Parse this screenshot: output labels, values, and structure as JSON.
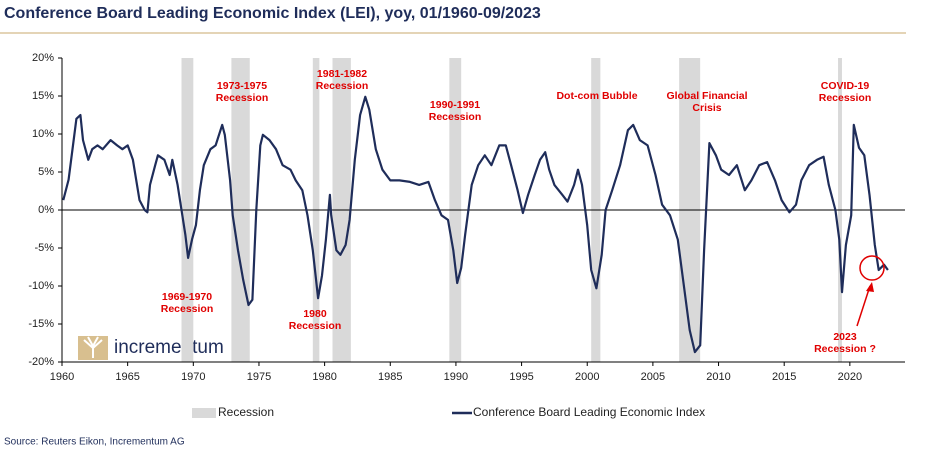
{
  "chart_data": {
    "type": "line",
    "title": "Conference Board Leading Economic Index (LEI), yoy, 01/1960-09/2023",
    "source": "Source: Reuters Eikon, Incrementum AG",
    "logo": "incrementum",
    "xlim": [
      1960,
      2024.2
    ],
    "xticks": [
      1960,
      1965,
      1970,
      1975,
      1980,
      1985,
      1990,
      1995,
      2000,
      2005,
      2010,
      2015,
      2020
    ],
    "ylim": [
      -20,
      20
    ],
    "yticks": [
      {
        "value": -20,
        "label": "-20%"
      },
      {
        "value": -15,
        "label": "-15%"
      },
      {
        "value": -10,
        "label": "-10%"
      },
      {
        "value": -5,
        "label": "-5%"
      },
      {
        "value": 0,
        "label": "0%"
      },
      {
        "value": 5,
        "label": "5%"
      },
      {
        "value": 10,
        "label": "10%"
      },
      {
        "value": 15,
        "label": "15%"
      },
      {
        "value": 20,
        "label": "20%"
      }
    ],
    "recession_label": "Recession",
    "recession_color": "#d9d9d9",
    "recessions": [
      [
        1969.1,
        1970.0
      ],
      [
        1972.9,
        1974.3
      ],
      [
        1979.1,
        1979.6
      ],
      [
        1980.6,
        1982.0
      ],
      [
        1989.5,
        1990.4
      ],
      [
        2000.3,
        2001.0
      ],
      [
        2007.0,
        2008.6
      ],
      [
        2019.1,
        2019.4
      ]
    ],
    "x": [
      1960.1,
      1960.5,
      1960.8,
      1961.1,
      1961.4,
      1961.6,
      1962.0,
      1962.3,
      1962.7,
      1963.1,
      1963.7,
      1964.2,
      1964.6,
      1965.0,
      1965.4,
      1965.9,
      1966.3,
      1966.5,
      1966.7,
      1967.1,
      1967.3,
      1967.8,
      1968.2,
      1968.4,
      1968.8,
      1969.1,
      1969.4,
      1969.6,
      1969.9,
      1970.2,
      1970.5,
      1970.8,
      1971.3,
      1971.7,
      1972.2,
      1972.4,
      1972.8,
      1973.0,
      1973.4,
      1973.8,
      1974.2,
      1974.5,
      1974.8,
      1975.1,
      1975.3,
      1975.8,
      1976.3,
      1976.8,
      1977.4,
      1977.8,
      1978.3,
      1978.7,
      1979.1,
      1979.5,
      1979.8,
      1980.1,
      1980.4,
      1980.5,
      1980.9,
      1981.2,
      1981.6,
      1981.9,
      1982.3,
      1982.7,
      1983.1,
      1983.4,
      1983.9,
      1984.4,
      1985.0,
      1985.7,
      1986.5,
      1987.2,
      1987.9,
      1988.4,
      1988.9,
      1989.4,
      1989.8,
      1990.1,
      1990.4,
      1990.7,
      1991.2,
      1991.7,
      1992.2,
      1992.7,
      1993.3,
      1993.8,
      1994.2,
      1994.7,
      1995.1,
      1995.5,
      1996.0,
      1996.4,
      1996.8,
      1997.1,
      1997.5,
      1998.1,
      1998.5,
      1999.0,
      1999.3,
      1999.6,
      2000.0,
      2000.3,
      2000.7,
      2001.1,
      2001.4,
      2001.9,
      2002.5,
      2003.1,
      2003.5,
      2004.0,
      2004.6,
      2005.2,
      2005.7,
      2006.3,
      2006.9,
      2007.3,
      2007.8,
      2008.2,
      2008.6,
      2008.9,
      2009.3,
      2009.8,
      2010.2,
      2010.8,
      2011.4,
      2012.0,
      2012.5,
      2013.1,
      2013.7,
      2014.3,
      2014.8,
      2015.4,
      2015.9,
      2016.3,
      2016.9,
      2017.5,
      2018.0,
      2018.4,
      2018.9,
      2019.2,
      2019.4,
      2019.7,
      2020.1,
      2020.3,
      2020.7,
      2021.1,
      2021.5,
      2021.9,
      2022.2,
      2022.6,
      2022.9
    ],
    "series": [
      {
        "name": "Conference Board Leading Economic Index",
        "color": "#1f2d5a",
        "values": [
          1.3,
          4,
          8,
          12,
          12.5,
          9.2,
          6.6,
          8,
          8.5,
          8,
          9.2,
          8.5,
          8,
          8.5,
          6.6,
          1.3,
          0,
          -0.3,
          3.3,
          5.9,
          7.2,
          6.6,
          4.6,
          6.6,
          3.3,
          0,
          -3.3,
          -6.3,
          -3.9,
          -2,
          2.6,
          5.9,
          8,
          8.5,
          11.2,
          9.9,
          3.9,
          -0.7,
          -5.3,
          -9.2,
          -12.5,
          -11.8,
          0,
          8.5,
          9.9,
          9.2,
          8,
          5.9,
          5.3,
          3.9,
          2.6,
          -0.7,
          -5.3,
          -11.6,
          -8.6,
          -3.9,
          2,
          -0.7,
          -5.3,
          -5.9,
          -4.6,
          -1.3,
          6.6,
          12.5,
          14.9,
          13.2,
          8,
          5.3,
          3.9,
          3.9,
          3.7,
          3.3,
          3.7,
          1.3,
          -0.7,
          -1.3,
          -5.3,
          -9.6,
          -7.6,
          -3.3,
          3.3,
          5.9,
          7.2,
          5.9,
          8.5,
          8.5,
          5.9,
          2.6,
          -0.4,
          2,
          4.6,
          6.6,
          7.6,
          5.3,
          3.3,
          2,
          1.1,
          3.3,
          5.3,
          3.3,
          -2,
          -7.9,
          -10.3,
          -5.9,
          0,
          2.6,
          5.9,
          10.5,
          11.2,
          9.2,
          8.5,
          4.6,
          0.7,
          -0.7,
          -3.9,
          -9.2,
          -15.8,
          -18.7,
          -17.8,
          -5.3,
          8.8,
          7.2,
          5.3,
          4.6,
          5.9,
          2.6,
          3.9,
          5.9,
          6.3,
          3.9,
          1.3,
          -0.3,
          0.7,
          3.9,
          5.9,
          6.6,
          7,
          3.3,
          0,
          -3.9,
          -10.8,
          -4.6,
          -0.7,
          11.2,
          8.2,
          7.2,
          2,
          -4.6,
          -7.9,
          -7.2,
          -7.9
        ]
      }
    ],
    "annotations": [
      {
        "text": [
          "1969-1970",
          "Recession"
        ]
      },
      {
        "text": [
          "1973-1975",
          "Recession"
        ]
      },
      {
        "text": [
          "1980",
          "Recession"
        ]
      },
      {
        "text": [
          "1981-1982",
          "Recession"
        ]
      },
      {
        "text": [
          "1990-1991",
          "Recession"
        ]
      },
      {
        "text": [
          "Dot-com Bubble"
        ]
      },
      {
        "text": [
          "Global Financial",
          "Crisis"
        ]
      },
      {
        "text": [
          "COVID-19",
          "Recession"
        ]
      },
      {
        "text": [
          "2023",
          "Recession ?"
        ]
      }
    ]
  }
}
